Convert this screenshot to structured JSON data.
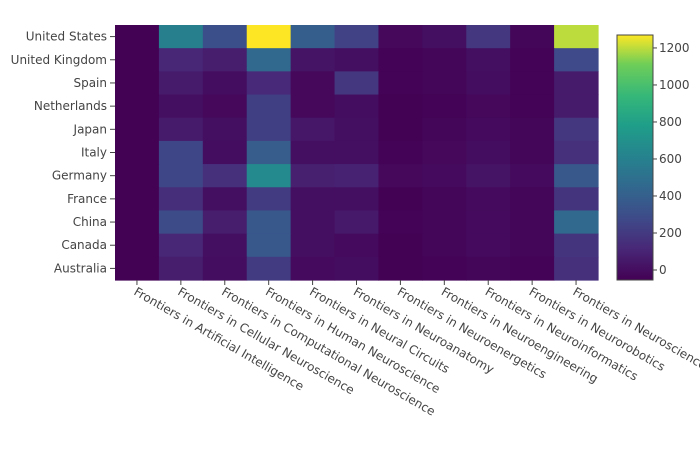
{
  "chart_data": {
    "type": "heatmap",
    "title": "",
    "xlabel": "",
    "ylabel": "",
    "colorscale": "viridis",
    "zrange": [
      0,
      1270
    ],
    "colorbar": {
      "ticks": [
        0,
        200,
        400,
        600,
        800,
        1000,
        1200
      ],
      "tick_labels": [
        "0",
        "200",
        "400",
        "600",
        "800",
        "1000",
        "1200"
      ]
    },
    "x": [
      "Frontiers in Artificial Intelligence",
      "Frontiers in Cellular Neuroscience",
      "Frontiers in Computational Neuroscience",
      "Frontiers in Human Neuroscience",
      "Frontiers in Neural Circuits",
      "Frontiers in Neuroanatomy",
      "Frontiers in Neuroenergetics",
      "Frontiers in Neuroengineering",
      "Frontiers in Neuroinformatics",
      "Frontiers in Neurorobotics",
      "Frontiers in Neuroscience"
    ],
    "y": [
      "United States",
      "United Kingdom",
      "Spain",
      "Netherlands",
      "Japan",
      "Italy",
      "Germany",
      "France",
      "China",
      "Canada",
      "Australia"
    ],
    "z": [
      [
        5,
        620,
        350,
        1270,
        430,
        280,
        30,
        60,
        230,
        20,
        1200
      ],
      [
        5,
        160,
        120,
        480,
        80,
        60,
        10,
        20,
        60,
        10,
        320
      ],
      [
        5,
        110,
        50,
        170,
        30,
        230,
        10,
        20,
        50,
        10,
        110
      ],
      [
        5,
        60,
        30,
        270,
        30,
        50,
        5,
        10,
        30,
        10,
        110
      ],
      [
        5,
        110,
        60,
        270,
        90,
        60,
        5,
        20,
        40,
        20,
        230
      ],
      [
        5,
        300,
        50,
        420,
        60,
        60,
        10,
        30,
        50,
        20,
        200
      ],
      [
        5,
        300,
        200,
        680,
        130,
        140,
        30,
        40,
        80,
        40,
        390
      ],
      [
        5,
        190,
        60,
        250,
        60,
        60,
        5,
        20,
        40,
        20,
        220
      ],
      [
        5,
        330,
        120,
        390,
        60,
        100,
        10,
        20,
        40,
        20,
        480
      ],
      [
        5,
        160,
        60,
        390,
        60,
        40,
        5,
        20,
        40,
        20,
        220
      ],
      [
        5,
        120,
        50,
        250,
        40,
        50,
        5,
        10,
        20,
        10,
        200
      ]
    ]
  }
}
